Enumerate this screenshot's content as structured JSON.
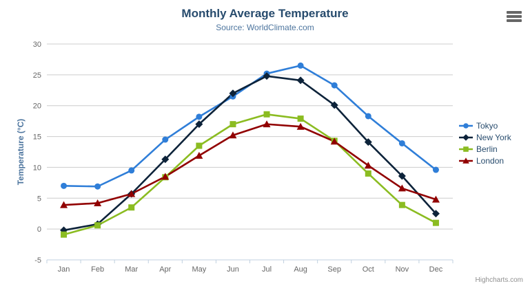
{
  "header": {
    "title": "Monthly Average Temperature",
    "subtitle": "Source: WorldClimate.com"
  },
  "export_button": {
    "icon": "hamburger-menu-icon"
  },
  "credits": {
    "label": "Highcharts.com"
  },
  "colors": {
    "title": "#274b6d",
    "subtitle": "#4d759e",
    "axis_label": "#666666",
    "axis_title": "#4d759e",
    "grid": "#cccccc",
    "axis_line": "#c0d0e0",
    "legend_text": "#274b6d",
    "credits": "#909090",
    "menu_icon": "#666666"
  },
  "chart_data": {
    "type": "line",
    "title": "Monthly Average Temperature",
    "subtitle": "Source: WorldClimate.com",
    "xlabel": "",
    "ylabel": "Temperature (°C)",
    "ylim": [
      -5,
      30
    ],
    "ytick_step": 5,
    "grid": true,
    "legend_position": "right",
    "categories": [
      "Jan",
      "Feb",
      "Mar",
      "Apr",
      "May",
      "Jun",
      "Jul",
      "Aug",
      "Sep",
      "Oct",
      "Nov",
      "Dec"
    ],
    "series": [
      {
        "name": "Tokyo",
        "color": "#2f7ed8",
        "marker": "circle",
        "values": [
          7.0,
          6.9,
          9.5,
          14.5,
          18.2,
          21.5,
          25.2,
          26.5,
          23.3,
          18.3,
          13.9,
          9.6
        ]
      },
      {
        "name": "New York",
        "color": "#0d233a",
        "marker": "diamond",
        "values": [
          -0.2,
          0.8,
          5.7,
          11.3,
          17.0,
          22.0,
          24.8,
          24.1,
          20.1,
          14.1,
          8.6,
          2.5
        ]
      },
      {
        "name": "Berlin",
        "color": "#8bbc21",
        "marker": "square",
        "values": [
          -0.9,
          0.6,
          3.5,
          8.4,
          13.5,
          17.0,
          18.6,
          17.9,
          14.3,
          9.0,
          3.9,
          1.0
        ]
      },
      {
        "name": "London",
        "color": "#910000",
        "marker": "triangle",
        "values": [
          3.9,
          4.2,
          5.7,
          8.5,
          11.9,
          15.2,
          17.0,
          16.6,
          14.2,
          10.3,
          6.6,
          4.8
        ]
      }
    ]
  }
}
